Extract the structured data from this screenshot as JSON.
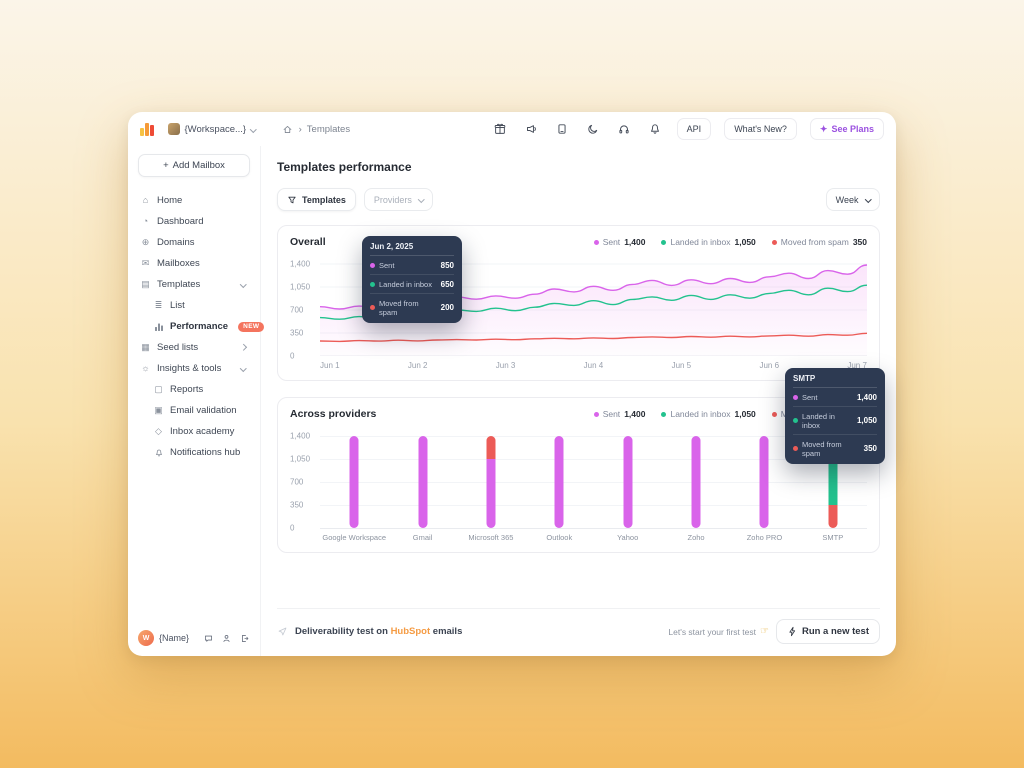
{
  "header": {
    "workspace_label": "{Workspace...}",
    "breadcrumb_item": "Templates",
    "icon_buttons": [
      "gift-icon",
      "megaphone-icon",
      "changelog-icon",
      "dark-mode-icon",
      "headphones-icon",
      "notifications-icon"
    ],
    "api_label": "API",
    "whats_new_label": "What's New?",
    "see_plans_label": "See Plans",
    "see_plans_icon": "✦"
  },
  "sidebar": {
    "add_mailbox_plus": "+",
    "add_mailbox_label": "Add Mailbox",
    "items": [
      {
        "label": "Home",
        "icon": "home-icon"
      },
      {
        "label": "Dashboard",
        "icon": "dashboard-icon"
      },
      {
        "label": "Domains",
        "icon": "domains-icon"
      },
      {
        "label": "Mailboxes",
        "icon": "mailboxes-icon"
      },
      {
        "label": "Templates",
        "icon": "templates-icon",
        "expanded": true
      },
      {
        "label": "List",
        "icon": "list-icon",
        "sub": true
      },
      {
        "label": "Performance",
        "icon": "performance-icon",
        "sub": true,
        "active": true,
        "badge": "NEW"
      },
      {
        "label": "Seed lists",
        "icon": "seed-lists-icon",
        "collapsed": true
      },
      {
        "label": "Insights & tools",
        "icon": "insights-icon",
        "expanded": true
      },
      {
        "label": "Reports",
        "icon": "reports-icon",
        "sub": true
      },
      {
        "label": "Email validation",
        "icon": "email-validation-icon",
        "sub": true
      },
      {
        "label": "Inbox academy",
        "icon": "academy-icon",
        "sub": true
      },
      {
        "label": "Notifications hub",
        "icon": "notifications-hub-icon",
        "sub": true
      }
    ],
    "footer": {
      "avatar_initial": "W",
      "name": "{Name}"
    }
  },
  "main": {
    "title": "Templates performance",
    "filters": {
      "templates_label": "Templates",
      "providers_label": "Providers",
      "period_label": "Week"
    }
  },
  "chart_data": [
    {
      "type": "line",
      "title": "Overall",
      "x_labels": [
        "Jun 1",
        "Jun 2",
        "Jun 3",
        "Jun 4",
        "Jun 5",
        "Jun 6",
        "Jun 7"
      ],
      "y_ticks": [
        {
          "label": "1,400",
          "value": 1400
        },
        {
          "label": "1,050",
          "value": 1050
        },
        {
          "label": "700",
          "value": 700
        },
        {
          "label": "350",
          "value": 350
        },
        {
          "label": "0",
          "value": 0
        }
      ],
      "ylim": [
        0,
        1400
      ],
      "grid": true,
      "legend_position": "top-right",
      "legend": [
        {
          "label": "Sent",
          "value": "1,400",
          "color": "#d964ea"
        },
        {
          "label": "Landed in inbox",
          "value": "1,050",
          "color": "#23c28e"
        },
        {
          "label": "Moved from spam",
          "value": "350",
          "color": "#ec5b57"
        }
      ],
      "series": [
        {
          "name": "Sent",
          "color": "#d964ea",
          "fill": true,
          "values": [
            750,
            715,
            760,
            725,
            770,
            735,
            785,
            900,
            865,
            915,
            880,
            940,
            1020,
            975,
            1060,
            1000,
            1090,
            1150,
            1075,
            1160,
            1100,
            1180,
            1120,
            1205,
            1260,
            1180,
            1300,
            1245,
            1385
          ]
        },
        {
          "name": "Landed in inbox",
          "color": "#23c28e",
          "values": [
            585,
            560,
            600,
            570,
            612,
            580,
            625,
            700,
            678,
            728,
            690,
            742,
            800,
            770,
            842,
            782,
            862,
            900,
            848,
            922,
            862,
            932,
            880,
            952,
            1000,
            932,
            1032,
            980,
            1078
          ]
        },
        {
          "name": "Moved from spam",
          "color": "#ec5b57",
          "values": [
            228,
            222,
            234,
            226,
            240,
            230,
            244,
            250,
            244,
            256,
            248,
            262,
            270,
            261,
            276,
            266,
            281,
            290,
            281,
            296,
            286,
            301,
            291,
            306,
            316,
            301,
            326,
            316,
            346
          ]
        }
      ]
    },
    {
      "type": "bar",
      "title": "Across providers",
      "y_ticks": [
        {
          "label": "1,400",
          "value": 1400
        },
        {
          "label": "1,050",
          "value": 1050
        },
        {
          "label": "700",
          "value": 700
        },
        {
          "label": "350",
          "value": 350
        },
        {
          "label": "0",
          "value": 0
        }
      ],
      "ylim": [
        0,
        1400
      ],
      "grid": true,
      "legend_position": "top-right",
      "legend": [
        {
          "label": "Sent",
          "value": "1,400",
          "color": "#d964ea"
        },
        {
          "label": "Landed in inbox",
          "value": "1,050",
          "color": "#23c28e"
        },
        {
          "label": "Moved from spam",
          "value": "350",
          "color": "#ec5b57"
        }
      ],
      "colors": {
        "Sent": "#d964ea",
        "Landed in inbox": "#23c28e",
        "Moved from spam": "#ec5b57"
      },
      "categories": [
        "Google Workspace",
        "Gmail",
        "Microsoft 365",
        "Outlook",
        "Yahoo",
        "Zoho",
        "Zoho PRO",
        "SMTP"
      ],
      "bars": [
        {
          "category": "Google Workspace",
          "segments": [
            {
              "name": "Sent",
              "value": 1400
            }
          ]
        },
        {
          "category": "Gmail",
          "segments": [
            {
              "name": "Sent",
              "value": 1400
            }
          ]
        },
        {
          "category": "Microsoft 365",
          "segments": [
            {
              "name": "Sent",
              "value": 1050
            },
            {
              "name": "Moved from spam",
              "value": 350
            }
          ]
        },
        {
          "category": "Outlook",
          "segments": [
            {
              "name": "Sent",
              "value": 1400
            }
          ]
        },
        {
          "category": "Yahoo",
          "segments": [
            {
              "name": "Sent",
              "value": 1400
            }
          ]
        },
        {
          "category": "Zoho",
          "segments": [
            {
              "name": "Sent",
              "value": 1400
            }
          ]
        },
        {
          "category": "Zoho PRO",
          "segments": [
            {
              "name": "Sent",
              "value": 1400
            }
          ]
        },
        {
          "category": "SMTP",
          "segments": [
            {
              "name": "Moved from spam",
              "value": 350
            },
            {
              "name": "Landed in inbox",
              "value": 700
            },
            {
              "name": "Sent",
              "value": 350
            }
          ]
        }
      ]
    }
  ],
  "tooltips": {
    "overall": {
      "title": "Jun 2, 2025",
      "rows": [
        {
          "label": "Sent",
          "value": "850",
          "color": "#d964ea"
        },
        {
          "label": "Landed in inbox",
          "value": "650",
          "color": "#23c28e"
        },
        {
          "label": "Moved from spam",
          "value": "200",
          "color": "#ec5b57"
        }
      ]
    },
    "providers": {
      "title": "SMTP",
      "rows": [
        {
          "label": "Sent",
          "value": "1,400",
          "color": "#d964ea"
        },
        {
          "label": "Landed in inbox",
          "value": "1,050",
          "color": "#23c28e"
        },
        {
          "label": "Moved from spam",
          "value": "350",
          "color": "#ec5b57"
        }
      ]
    }
  },
  "footer_bar": {
    "prefix": "Deliverability test on",
    "brand": "HubSpot",
    "suffix": "emails",
    "hint": "Let's start your first test",
    "pointer": "☞",
    "button_label": "Run a new test"
  }
}
